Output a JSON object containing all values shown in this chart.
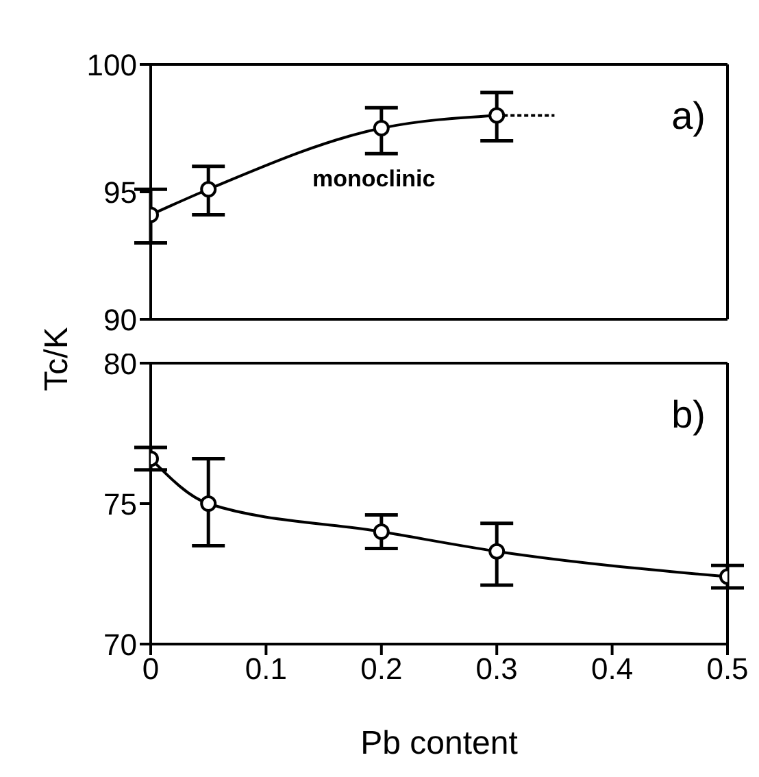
{
  "chart_data": [
    {
      "type": "line",
      "ylabel": "Tc/K",
      "x": [
        0,
        0.05,
        0.2,
        0.3
      ],
      "xlim": [
        0,
        0.5
      ],
      "xticks": [
        0,
        0.1,
        0.2,
        0.3,
        0.4,
        0.5
      ],
      "ylim": [
        90,
        100
      ],
      "yticks": [
        90,
        95,
        100
      ],
      "tick_labels": "y",
      "marker": "circle",
      "line_style": "solid",
      "series": [
        {
          "color": "#000000",
          "values": [
            94.1,
            95.1,
            97.5,
            98.0
          ],
          "errors": [
            [
              93.0,
              95.1
            ],
            [
              94.1,
              96.0
            ],
            [
              96.5,
              98.3
            ],
            [
              97.0,
              98.9
            ]
          ]
        },
        {
          "type": "line",
          "color": "#000000",
          "x": [
            0.3,
            0.35
          ],
          "values": [
            98.0,
            98.0
          ],
          "marker": "none",
          "line_style": "dotted"
        }
      ],
      "annotations": [
        "a)",
        "monoclinic"
      ]
    },
    {
      "type": "line",
      "xlabel": "Pb content",
      "x": [
        0,
        0.05,
        0.2,
        0.3,
        0.5
      ],
      "xlim": [
        0,
        0.5
      ],
      "xticks": [
        0,
        0.1,
        0.2,
        0.3,
        0.4,
        0.5
      ],
      "ylim": [
        70,
        80
      ],
      "yticks": [
        70,
        75,
        80
      ],
      "marker": "circle",
      "line_style": "solid",
      "series": [
        {
          "color": "#000000",
          "values": [
            76.6,
            75.0,
            74.0,
            73.3,
            72.4
          ],
          "errors": [
            [
              76.2,
              77.0
            ],
            [
              73.5,
              76.6
            ],
            [
              73.4,
              74.6
            ],
            [
              72.1,
              74.3
            ],
            [
              72.0,
              72.8
            ]
          ]
        }
      ],
      "annotations": [
        "b)"
      ]
    }
  ]
}
